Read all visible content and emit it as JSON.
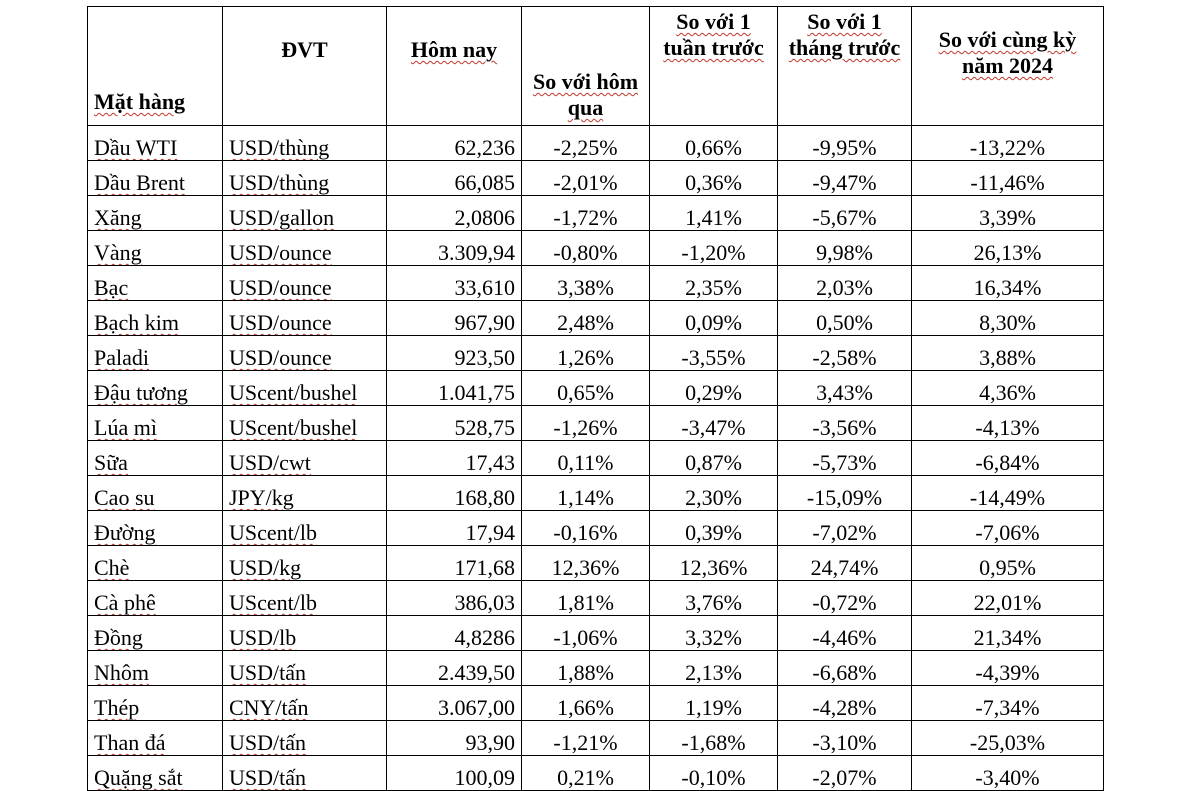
{
  "table": {
    "headers": {
      "name": "Mặt hàng",
      "unit": "ĐVT",
      "today": "Hôm nay",
      "vs_yesterday": "So với hôm qua",
      "vs_week": "So với 1 tuần trước",
      "vs_month": "So với 1 tháng trước",
      "vs_year": "So với cùng kỳ năm 2024"
    },
    "rows": [
      {
        "name": "Dầu WTI",
        "unit": "USD/thùng",
        "today": "62,236",
        "day": "-2,25%",
        "week": "0,66%",
        "month": "-9,95%",
        "year": "-13,22%"
      },
      {
        "name": "Dầu Brent",
        "unit": "USD/thùng",
        "today": "66,085",
        "day": "-2,01%",
        "week": "0,36%",
        "month": "-9,47%",
        "year": "-11,46%"
      },
      {
        "name": "Xăng",
        "unit": "USD/gallon",
        "today": "2,0806",
        "day": "-1,72%",
        "week": "1,41%",
        "month": "-5,67%",
        "year": "3,39%"
      },
      {
        "name": "Vàng",
        "unit": "USD/ounce",
        "today": "3.309,94",
        "day": "-0,80%",
        "week": "-1,20%",
        "month": "9,98%",
        "year": "26,13%"
      },
      {
        "name": "Bạc",
        "unit": "USD/ounce",
        "today": "33,610",
        "day": "3,38%",
        "week": "2,35%",
        "month": "2,03%",
        "year": "16,34%"
      },
      {
        "name": "Bạch kim",
        "unit": "USD/ounce",
        "today": "967,90",
        "day": "2,48%",
        "week": "0,09%",
        "month": "0,50%",
        "year": "8,30%"
      },
      {
        "name": "Paladi",
        "unit": "USD/ounce",
        "today": "923,50",
        "day": "1,26%",
        "week": "-3,55%",
        "month": "-2,58%",
        "year": "3,88%"
      },
      {
        "name": "Đậu tương",
        "unit": "UScent/bushel",
        "today": "1.041,75",
        "day": "0,65%",
        "week": "0,29%",
        "month": "3,43%",
        "year": "4,36%"
      },
      {
        "name": "Lúa mì",
        "unit": "UScent/bushel",
        "today": "528,75",
        "day": "-1,26%",
        "week": "-3,47%",
        "month": "-3,56%",
        "year": "-4,13%"
      },
      {
        "name": "Sữa",
        "unit": "USD/cwt",
        "today": "17,43",
        "day": "0,11%",
        "week": "0,87%",
        "month": "-5,73%",
        "year": "-6,84%"
      },
      {
        "name": "Cao su",
        "unit": "JPY/kg",
        "today": "168,80",
        "day": "1,14%",
        "week": "2,30%",
        "month": "-15,09%",
        "year": "-14,49%"
      },
      {
        "name": "Đường",
        "unit": "UScent/lb",
        "today": "17,94",
        "day": "-0,16%",
        "week": "0,39%",
        "month": "-7,02%",
        "year": "-7,06%"
      },
      {
        "name": "Chè",
        "unit": "USD/kg",
        "today": "171,68",
        "day": "12,36%",
        "week": "12,36%",
        "month": "24,74%",
        "year": "0,95%"
      },
      {
        "name": "Cà phê",
        "unit": "UScent/lb",
        "today": "386,03",
        "day": "1,81%",
        "week": "3,76%",
        "month": "-0,72%",
        "year": "22,01%"
      },
      {
        "name": "Đồng",
        "unit": "USD/lb",
        "today": "4,8286",
        "day": "-1,06%",
        "week": "3,32%",
        "month": "-4,46%",
        "year": "21,34%"
      },
      {
        "name": "Nhôm",
        "unit": "USD/tấn",
        "today": "2.439,50",
        "day": "1,88%",
        "week": "2,13%",
        "month": "-6,68%",
        "year": "-4,39%"
      },
      {
        "name": "Thép",
        "unit": "CNY/tấn",
        "today": "3.067,00",
        "day": "1,66%",
        "week": "1,19%",
        "month": "-4,28%",
        "year": "-7,34%"
      },
      {
        "name": "Than đá",
        "unit": "USD/tấn",
        "today": "93,90",
        "day": "-1,21%",
        "week": "-1,68%",
        "month": "-3,10%",
        "year": "-25,03%"
      },
      {
        "name": "Quặng sắt",
        "unit": "USD/tấn",
        "today": "100,09",
        "day": "0,21%",
        "week": "-0,10%",
        "month": "-2,07%",
        "year": "-3,40%"
      }
    ]
  }
}
